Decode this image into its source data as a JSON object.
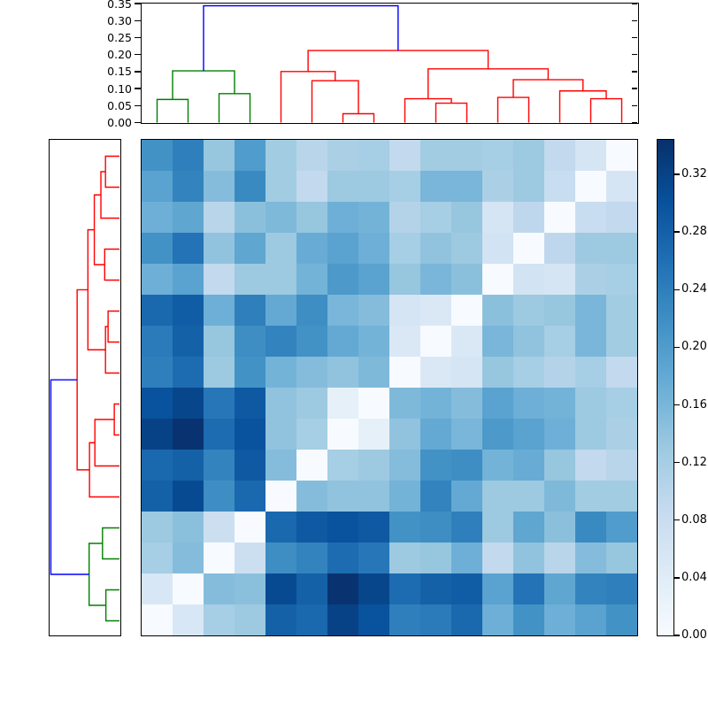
{
  "figure": {
    "background": "#ffffff",
    "description": "Hierarchically clustered distance-matrix heatmap with top and left dendrograms and a colorbar"
  },
  "chart_data": {
    "type": "heatmap",
    "subtype": "clustermap",
    "colormap": "Blues",
    "vmin": 0.0,
    "vmax": 0.344,
    "n_rows": 16,
    "n_cols": 16,
    "grid": false,
    "row_order": "reverse_of_column_order",
    "distance_matrix": [
      [
        0,
        0.055,
        0.12,
        0.13,
        0.28,
        0.27,
        0.32,
        0.3,
        0.24,
        0.245,
        0.27,
        0.17,
        0.215,
        0.17,
        0.19,
        0.215
      ],
      [
        0.055,
        0,
        0.15,
        0.145,
        0.31,
        0.28,
        0.34,
        0.315,
        0.265,
        0.28,
        0.285,
        0.19,
        0.255,
        0.185,
        0.235,
        0.24
      ],
      [
        0.12,
        0.15,
        0,
        0.075,
        0.22,
        0.235,
        0.265,
        0.25,
        0.13,
        0.135,
        0.17,
        0.09,
        0.14,
        0.1,
        0.15,
        0.135
      ],
      [
        0.13,
        0.145,
        0.075,
        0,
        0.27,
        0.29,
        0.3,
        0.29,
        0.215,
        0.22,
        0.24,
        0.13,
        0.185,
        0.145,
        0.225,
        0.2
      ],
      [
        0.28,
        0.31,
        0.22,
        0.27,
        0,
        0.15,
        0.14,
        0.14,
        0.165,
        0.235,
        0.18,
        0.13,
        0.13,
        0.155,
        0.125,
        0.125
      ],
      [
        0.27,
        0.28,
        0.235,
        0.29,
        0.15,
        0,
        0.12,
        0.13,
        0.15,
        0.215,
        0.22,
        0.165,
        0.175,
        0.135,
        0.09,
        0.1
      ],
      [
        0.32,
        0.34,
        0.265,
        0.3,
        0.14,
        0.12,
        0,
        0.03,
        0.14,
        0.18,
        0.16,
        0.205,
        0.19,
        0.17,
        0.13,
        0.115
      ],
      [
        0.3,
        0.315,
        0.25,
        0.29,
        0.14,
        0.13,
        0.03,
        0,
        0.155,
        0.165,
        0.15,
        0.19,
        0.17,
        0.165,
        0.13,
        0.12
      ],
      [
        0.24,
        0.265,
        0.13,
        0.215,
        0.165,
        0.15,
        0.14,
        0.155,
        0,
        0.05,
        0.06,
        0.135,
        0.12,
        0.105,
        0.12,
        0.09
      ],
      [
        0.245,
        0.28,
        0.135,
        0.22,
        0.235,
        0.215,
        0.18,
        0.165,
        0.05,
        0,
        0.05,
        0.16,
        0.14,
        0.12,
        0.16,
        0.125
      ],
      [
        0.27,
        0.285,
        0.17,
        0.24,
        0.18,
        0.22,
        0.16,
        0.15,
        0.06,
        0.05,
        0,
        0.145,
        0.13,
        0.135,
        0.16,
        0.125
      ],
      [
        0.17,
        0.19,
        0.09,
        0.13,
        0.13,
        0.165,
        0.205,
        0.19,
        0.135,
        0.16,
        0.145,
        0,
        0.065,
        0.06,
        0.115,
        0.12
      ],
      [
        0.215,
        0.255,
        0.14,
        0.185,
        0.13,
        0.175,
        0.19,
        0.17,
        0.12,
        0.14,
        0.13,
        0.065,
        0,
        0.095,
        0.13,
        0.13
      ],
      [
        0.17,
        0.185,
        0.1,
        0.145,
        0.155,
        0.135,
        0.17,
        0.165,
        0.105,
        0.12,
        0.135,
        0.06,
        0.095,
        0,
        0.08,
        0.09
      ],
      [
        0.19,
        0.235,
        0.15,
        0.225,
        0.125,
        0.09,
        0.13,
        0.13,
        0.12,
        0.16,
        0.16,
        0.115,
        0.13,
        0.08,
        0,
        0.06
      ],
      [
        0.215,
        0.24,
        0.135,
        0.2,
        0.125,
        0.1,
        0.115,
        0.12,
        0.09,
        0.125,
        0.125,
        0.12,
        0.13,
        0.09,
        0.06,
        0
      ]
    ],
    "linkage_merges": [
      [
        6,
        7,
        0.026,
        "red"
      ],
      [
        5,
        16,
        0.123,
        "red"
      ],
      [
        4,
        17,
        0.15,
        "red"
      ],
      [
        9,
        10,
        0.057,
        "red"
      ],
      [
        8,
        19,
        0.07,
        "red"
      ],
      [
        11,
        12,
        0.074,
        "red"
      ],
      [
        14,
        15,
        0.07,
        "red"
      ],
      [
        13,
        22,
        0.093,
        "red"
      ],
      [
        21,
        23,
        0.126,
        "red"
      ],
      [
        20,
        24,
        0.158,
        "red"
      ],
      [
        18,
        25,
        0.212,
        "red"
      ],
      [
        0,
        1,
        0.068,
        "green"
      ],
      [
        2,
        3,
        0.085,
        "green"
      ],
      [
        27,
        28,
        0.152,
        "green"
      ],
      [
        29,
        26,
        0.3435,
        "blue"
      ]
    ],
    "link_colors": {
      "red": "#ff0000",
      "green": "#008000",
      "blue": "#0000ff"
    },
    "top_dendrogram": {
      "orientation": "top",
      "ylim": [
        0.0,
        0.35
      ],
      "ticks": [
        "0.35",
        "0.30",
        "0.25",
        "0.20",
        "0.15",
        "0.10",
        "0.05",
        "0.00"
      ]
    },
    "left_dendrogram": {
      "orientation": "left",
      "xlim": [
        0.35,
        0.0
      ],
      "ticks": []
    },
    "colorbar": {
      "position": "right",
      "ticks": [
        "0.32",
        "0.28",
        "0.24",
        "0.20",
        "0.16",
        "0.12",
        "0.08",
        "0.04",
        "0.00"
      ],
      "tick_values": [
        0.32,
        0.28,
        0.24,
        0.2,
        0.16,
        0.12,
        0.08,
        0.04,
        0.0
      ],
      "colormap_stops": [
        "#f7fbff",
        "#deebf7",
        "#c6dbef",
        "#9ecae1",
        "#6baed6",
        "#4292c6",
        "#2171b5",
        "#08519c",
        "#08306b"
      ]
    }
  }
}
